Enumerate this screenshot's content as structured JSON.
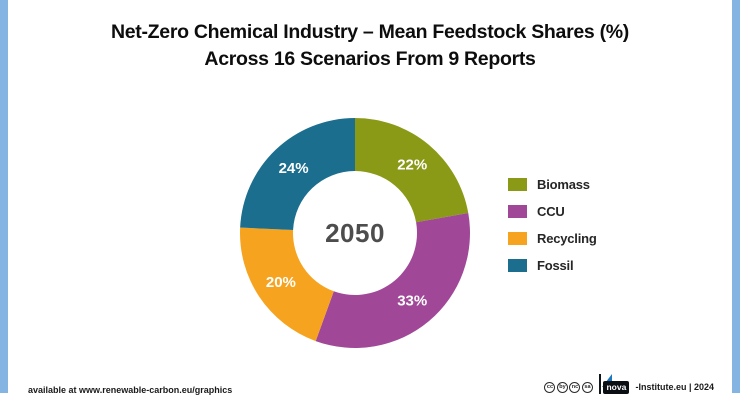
{
  "title": {
    "line1": "Net-Zero Chemical Industry – Mean Feedstock Shares (%)",
    "line2": "Across 16 Scenarios From 9 Reports"
  },
  "chart_data": {
    "type": "pie",
    "variant": "donut",
    "title": "Net-Zero Chemical Industry – Mean Feedstock Shares (%) Across 16 Scenarios From 9 Reports",
    "center_label": "2050",
    "categories": [
      "Biomass",
      "CCU",
      "Recycling",
      "Fossil"
    ],
    "values": [
      22,
      33,
      20,
      24
    ],
    "unit": "%",
    "colors": [
      "#8A9A17",
      "#A04897",
      "#F6A41F",
      "#1C6E8E"
    ],
    "start_angle_deg": 0,
    "direction": "clockwise",
    "legend_position": "right",
    "slice_label_color": "#FFFFFF",
    "center_label_color": "#4D4D4D"
  },
  "footer": {
    "left_text": "available at www.renewable-carbon.eu/graphics",
    "license_icons": [
      "cc",
      "by",
      "nc",
      "sa"
    ],
    "brand_logo_text": "nova",
    "brand_suffix": "-Institute.eu | 2024"
  },
  "frame": {
    "color": "#84B5E2"
  }
}
